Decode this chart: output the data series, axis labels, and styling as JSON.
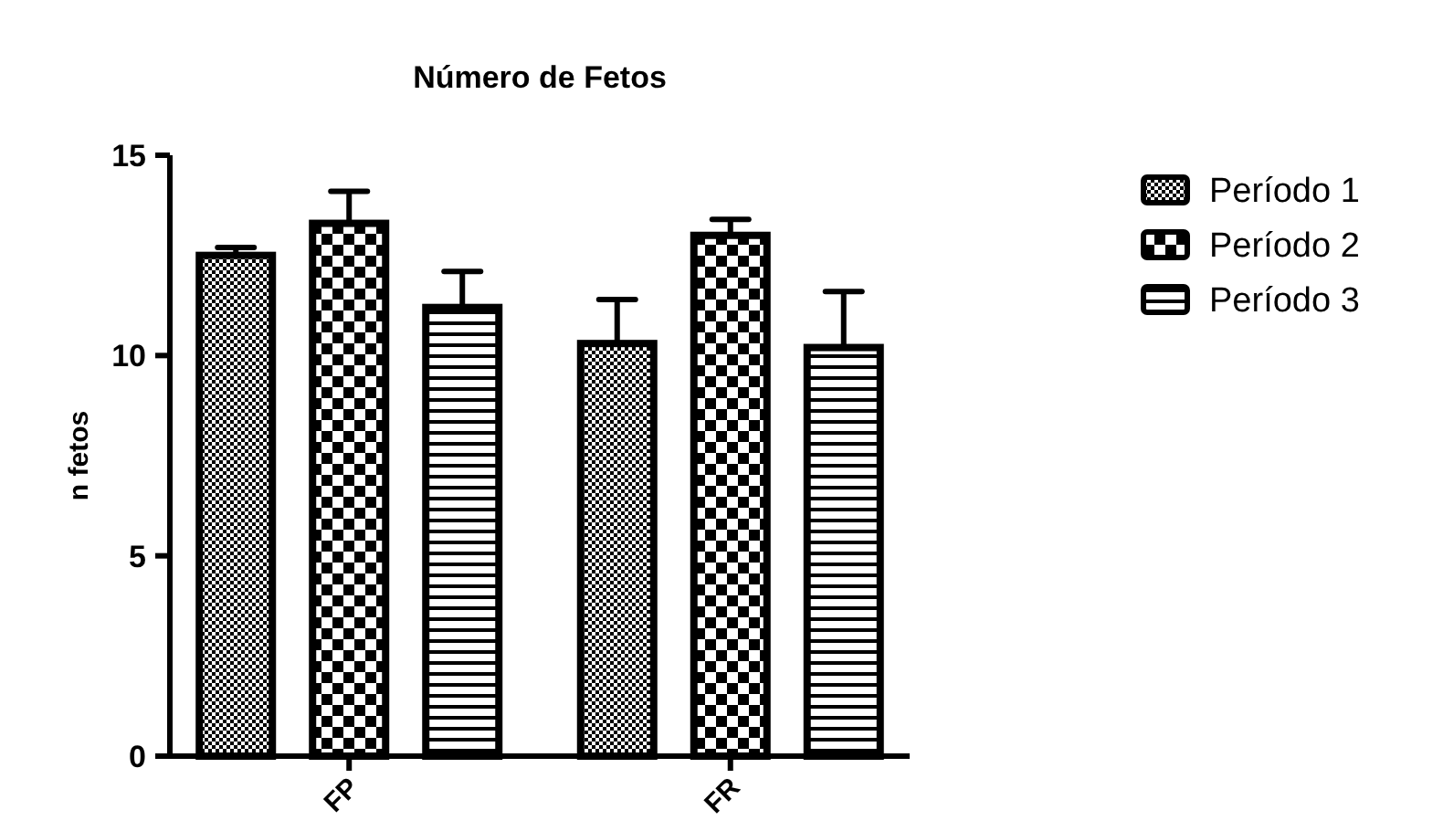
{
  "chart_data": {
    "type": "bar",
    "title": "Número de Fetos",
    "ylabel": "n fetos",
    "categories": [
      "FP",
      "FR"
    ],
    "series": [
      {
        "name": "Período 1",
        "color": "#000000",
        "values": [
          12.5,
          10.3
        ],
        "errors": [
          0.2,
          1.1
        ]
      },
      {
        "name": "Período 2",
        "color": "#000000",
        "values": [
          13.3,
          13.0
        ],
        "errors": [
          0.8,
          0.4
        ]
      },
      {
        "name": "Período 3",
        "color": "#000000",
        "values": [
          11.2,
          10.2
        ],
        "errors": [
          0.9,
          1.4
        ]
      }
    ],
    "ylim": [
      0,
      15
    ],
    "yticks": [
      0,
      5,
      10,
      15
    ],
    "grid": false,
    "legend": "right"
  }
}
